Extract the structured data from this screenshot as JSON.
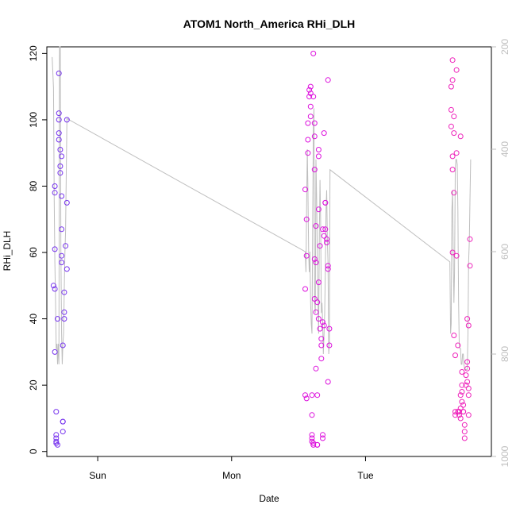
{
  "chart_data": {
    "type": "scatter",
    "title": "ATOM1 North_America RHi_DLH",
    "xlabel": "Date",
    "ylabel": "RHi_DLH",
    "x_ticks": [
      {
        "x": 0.0,
        "label": "Sun"
      },
      {
        "x": 1.0,
        "label": "Mon"
      },
      {
        "x": 2.0,
        "label": "Tue"
      }
    ],
    "xlim": [
      -0.38,
      2.94
    ],
    "ylim": [
      -1.5,
      122
    ],
    "y_ticks": [
      0,
      20,
      40,
      60,
      80,
      100,
      120
    ],
    "y2_ticks": [
      200,
      400,
      600,
      800,
      1000
    ],
    "y2lim": [
      1000,
      200
    ],
    "colors": {
      "cluster1": "#7733ee",
      "cluster2": "#dd11dd",
      "cluster3": "#ee22bb",
      "pressure_line": "#bebebe",
      "axis": "#000000",
      "right_axis": "#bebebe"
    },
    "series": [
      {
        "color": "#7733ee",
        "points": [
          [
            -0.33,
            50
          ],
          [
            -0.32,
            49
          ],
          [
            -0.32,
            80
          ],
          [
            -0.32,
            78
          ],
          [
            -0.32,
            61
          ],
          [
            -0.32,
            30
          ],
          [
            -0.31,
            12
          ],
          [
            -0.31,
            5
          ],
          [
            -0.31,
            4
          ],
          [
            -0.31,
            3
          ],
          [
            -0.31,
            2.5
          ],
          [
            -0.3,
            2
          ],
          [
            -0.3,
            40
          ],
          [
            -0.29,
            114
          ],
          [
            -0.29,
            102
          ],
          [
            -0.29,
            100
          ],
          [
            -0.29,
            96
          ],
          [
            -0.29,
            94
          ],
          [
            -0.28,
            86
          ],
          [
            -0.28,
            84
          ],
          [
            -0.28,
            91
          ],
          [
            -0.27,
            89
          ],
          [
            -0.27,
            77
          ],
          [
            -0.27,
            67
          ],
          [
            -0.27,
            59
          ],
          [
            -0.27,
            57
          ],
          [
            -0.26,
            32
          ],
          [
            -0.26,
            9
          ],
          [
            -0.26,
            9
          ],
          [
            -0.26,
            6
          ],
          [
            -0.25,
            48
          ],
          [
            -0.25,
            42
          ],
          [
            -0.25,
            40
          ],
          [
            -0.24,
            62
          ],
          [
            -0.23,
            75
          ],
          [
            -0.23,
            55
          ],
          [
            -0.23,
            100
          ]
        ]
      },
      {
        "color": "#dd11dd",
        "points": [
          [
            1.55,
            49
          ],
          [
            1.55,
            17
          ],
          [
            1.55,
            79
          ],
          [
            1.56,
            70
          ],
          [
            1.56,
            59
          ],
          [
            1.56,
            16
          ],
          [
            1.57,
            99
          ],
          [
            1.57,
            94
          ],
          [
            1.57,
            90
          ],
          [
            1.58,
            107
          ],
          [
            1.58,
            109
          ],
          [
            1.59,
            108
          ],
          [
            1.59,
            104
          ],
          [
            1.59,
            110
          ],
          [
            1.59,
            101
          ],
          [
            1.6,
            17
          ],
          [
            1.6,
            11
          ],
          [
            1.6,
            5
          ],
          [
            1.6,
            4
          ],
          [
            1.6,
            3
          ],
          [
            1.61,
            2
          ],
          [
            1.61,
            2.5
          ],
          [
            1.61,
            120
          ],
          [
            1.61,
            107
          ],
          [
            1.62,
            99
          ],
          [
            1.62,
            95
          ],
          [
            1.62,
            85
          ],
          [
            1.62,
            58
          ],
          [
            1.62,
            46
          ],
          [
            1.63,
            68
          ],
          [
            1.63,
            57
          ],
          [
            1.63,
            42
          ],
          [
            1.63,
            25
          ],
          [
            1.64,
            17
          ],
          [
            1.64,
            2
          ],
          [
            1.64,
            2
          ],
          [
            1.64,
            45
          ],
          [
            1.65,
            91
          ],
          [
            1.65,
            89
          ],
          [
            1.65,
            73
          ],
          [
            1.65,
            51
          ],
          [
            1.65,
            40
          ],
          [
            1.66,
            37
          ],
          [
            1.66,
            62
          ],
          [
            1.67,
            32
          ],
          [
            1.67,
            28
          ],
          [
            1.67,
            34
          ],
          [
            1.68,
            39
          ],
          [
            1.68,
            67
          ],
          [
            1.68,
            5
          ],
          [
            1.68,
            4
          ],
          [
            1.69,
            65
          ],
          [
            1.69,
            38
          ],
          [
            1.69,
            96
          ],
          [
            1.7,
            75
          ],
          [
            1.7,
            75
          ],
          [
            1.7,
            67
          ],
          [
            1.71,
            63
          ],
          [
            1.71,
            64
          ],
          [
            1.72,
            55
          ],
          [
            1.72,
            56
          ],
          [
            1.72,
            112
          ],
          [
            1.72,
            21
          ],
          [
            1.73,
            37
          ],
          [
            1.73,
            32
          ]
        ]
      },
      {
        "color": "#ee22bb",
        "points": [
          [
            2.64,
            110
          ],
          [
            2.64,
            103
          ],
          [
            2.64,
            98
          ],
          [
            2.65,
            118
          ],
          [
            2.65,
            112
          ],
          [
            2.65,
            89
          ],
          [
            2.65,
            85
          ],
          [
            2.65,
            60
          ],
          [
            2.66,
            101
          ],
          [
            2.66,
            96
          ],
          [
            2.66,
            78
          ],
          [
            2.66,
            35
          ],
          [
            2.67,
            29
          ],
          [
            2.67,
            12
          ],
          [
            2.67,
            11
          ],
          [
            2.68,
            115
          ],
          [
            2.68,
            90
          ],
          [
            2.68,
            59
          ],
          [
            2.69,
            32
          ],
          [
            2.69,
            12
          ],
          [
            2.7,
            11
          ],
          [
            2.7,
            12
          ],
          [
            2.71,
            95
          ],
          [
            2.71,
            17
          ],
          [
            2.71,
            13
          ],
          [
            2.71,
            10
          ],
          [
            2.72,
            24
          ],
          [
            2.72,
            20
          ],
          [
            2.72,
            15
          ],
          [
            2.73,
            14
          ],
          [
            2.73,
            12
          ],
          [
            2.74,
            8
          ],
          [
            2.74,
            6
          ],
          [
            2.74,
            4
          ],
          [
            2.75,
            23
          ],
          [
            2.75,
            20
          ],
          [
            2.76,
            40
          ],
          [
            2.76,
            27
          ],
          [
            2.76,
            25
          ],
          [
            2.76,
            21
          ],
          [
            2.77,
            38
          ],
          [
            2.77,
            19
          ],
          [
            2.77,
            17
          ],
          [
            2.77,
            11
          ],
          [
            2.78,
            64
          ],
          [
            2.78,
            56
          ],
          [
            2.72,
            18
          ],
          [
            2.73,
            12
          ]
        ]
      }
    ],
    "line_series": {
      "color": "#bebebe",
      "axis": "right",
      "points": [
        [
          -0.34,
          220
        ],
        [
          -0.33,
          280
        ],
        [
          -0.325,
          500
        ],
        [
          -0.32,
          620
        ],
        [
          -0.315,
          700
        ],
        [
          -0.31,
          790
        ],
        [
          -0.305,
          780
        ],
        [
          -0.3,
          820
        ],
        [
          -0.295,
          780
        ],
        [
          -0.29,
          820
        ],
        [
          -0.285,
          200
        ],
        [
          -0.28,
          200
        ],
        [
          -0.275,
          600
        ],
        [
          -0.27,
          760
        ],
        [
          -0.265,
          820
        ],
        [
          -0.26,
          780
        ],
        [
          -0.255,
          760
        ],
        [
          -0.25,
          680
        ],
        [
          -0.245,
          600
        ],
        [
          -0.24,
          560
        ],
        [
          -0.23,
          340
        ],
        [
          1.55,
          600
        ],
        [
          1.555,
          640
        ],
        [
          1.56,
          520
        ],
        [
          1.565,
          400
        ],
        [
          1.57,
          480
        ],
        [
          1.575,
          600
        ],
        [
          1.58,
          640
        ],
        [
          1.585,
          600
        ],
        [
          1.59,
          700
        ],
        [
          1.595,
          740
        ],
        [
          1.6,
          760
        ],
        [
          1.605,
          560
        ],
        [
          1.61,
          360
        ],
        [
          1.615,
          320
        ],
        [
          1.62,
          700
        ],
        [
          1.625,
          720
        ],
        [
          1.63,
          420
        ],
        [
          1.635,
          500
        ],
        [
          1.64,
          600
        ],
        [
          1.645,
          700
        ],
        [
          1.65,
          760
        ],
        [
          1.655,
          560
        ],
        [
          1.66,
          460
        ],
        [
          1.665,
          540
        ],
        [
          1.67,
          720
        ],
        [
          1.675,
          700
        ],
        [
          1.68,
          740
        ],
        [
          1.685,
          800
        ],
        [
          1.69,
          760
        ],
        [
          1.695,
          720
        ],
        [
          1.7,
          640
        ],
        [
          1.705,
          520
        ],
        [
          1.71,
          480
        ],
        [
          1.715,
          580
        ],
        [
          1.72,
          620
        ],
        [
          1.725,
          800
        ],
        [
          1.73,
          780
        ],
        [
          1.735,
          440
        ],
        [
          2.63,
          620
        ],
        [
          2.635,
          760
        ],
        [
          2.64,
          740
        ],
        [
          2.645,
          520
        ],
        [
          2.65,
          480
        ],
        [
          2.655,
          600
        ],
        [
          2.66,
          700
        ],
        [
          2.665,
          640
        ],
        [
          2.67,
          440
        ],
        [
          2.675,
          420
        ],
        [
          2.68,
          420
        ],
        [
          2.685,
          430
        ],
        [
          2.69,
          520
        ],
        [
          2.695,
          700
        ],
        [
          2.7,
          780
        ],
        [
          2.705,
          790
        ],
        [
          2.71,
          790
        ],
        [
          2.715,
          820
        ],
        [
          2.72,
          820
        ],
        [
          2.725,
          800
        ],
        [
          2.73,
          800
        ],
        [
          2.735,
          820
        ],
        [
          2.74,
          830
        ],
        [
          2.745,
          830
        ],
        [
          2.75,
          830
        ],
        [
          2.755,
          830
        ],
        [
          2.76,
          830
        ],
        [
          2.765,
          760
        ],
        [
          2.77,
          620
        ],
        [
          2.775,
          580
        ],
        [
          2.78,
          500
        ],
        [
          2.785,
          420
        ]
      ]
    }
  }
}
